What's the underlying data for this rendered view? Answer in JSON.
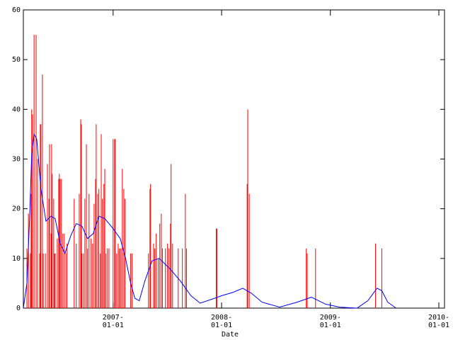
{
  "chart_data": {
    "type": "combo",
    "x_label": "Date",
    "xlim": [
      "2006-03-05",
      "2010-01-20"
    ],
    "xticks": [
      {
        "value": "2007-01-01",
        "label": [
          "2007-",
          "01-01"
        ]
      },
      {
        "value": "2008-01-01",
        "label": [
          "2008-",
          "01-01"
        ]
      },
      {
        "value": "2009-01-01",
        "label": [
          "2009-",
          "01-01"
        ]
      },
      {
        "value": "2010-01-01",
        "label": [
          "2010-",
          "01-01"
        ]
      }
    ],
    "ylim": [
      0,
      60
    ],
    "yticks": [
      0,
      10,
      20,
      30,
      40,
      50,
      60
    ],
    "series": [
      {
        "type": "impulse",
        "color": "#ff0000",
        "x": [
          "2006-03-17",
          "2006-03-22",
          "2006-03-29",
          "2006-03-31",
          "2006-04-02",
          "2006-04-05",
          "2006-04-10",
          "2006-04-17",
          "2006-04-22",
          "2006-04-29",
          "2006-05-01",
          "2006-05-03",
          "2006-05-08",
          "2006-05-11",
          "2006-05-18",
          "2006-05-25",
          "2006-05-30",
          "2006-06-01",
          "2006-06-06",
          "2006-06-08",
          "2006-06-10",
          "2006-06-15",
          "2006-06-18",
          "2006-06-20",
          "2006-06-27",
          "2006-07-02",
          "2006-07-04",
          "2006-07-07",
          "2006-07-11",
          "2006-07-16",
          "2006-07-21",
          "2006-07-26",
          "2006-07-30",
          "2006-08-23",
          "2006-08-30",
          "2006-09-09",
          "2006-09-14",
          "2006-09-16",
          "2006-09-18",
          "2006-09-23",
          "2006-09-28",
          "2006-10-03",
          "2006-10-07",
          "2006-10-12",
          "2006-10-19",
          "2006-10-24",
          "2006-10-29",
          "2006-11-03",
          "2006-11-05",
          "2006-11-10",
          "2006-11-14",
          "2006-11-19",
          "2006-11-22",
          "2006-11-26",
          "2006-12-01",
          "2006-12-04",
          "2006-12-08",
          "2006-12-13",
          "2006-12-18",
          "2007-01-01",
          "2007-01-06",
          "2007-01-08",
          "2007-01-13",
          "2007-01-18",
          "2007-01-22",
          "2007-01-27",
          "2007-02-01",
          "2007-02-06",
          "2007-02-10",
          "2007-03-01",
          "2007-03-06",
          "2007-04-30",
          "2007-05-05",
          "2007-05-07",
          "2007-05-17",
          "2007-05-21",
          "2007-05-26",
          "2007-06-02",
          "2007-06-07",
          "2007-06-12",
          "2007-06-16",
          "2007-06-26",
          "2007-07-03",
          "2007-07-08",
          "2007-07-13",
          "2007-07-15",
          "2007-07-20",
          "2007-08-08",
          "2007-08-22",
          "2007-09-01",
          "2007-09-05",
          "2007-12-14",
          "2007-12-16",
          "2008-03-27",
          "2008-03-29",
          "2008-04-03",
          "2008-10-12",
          "2008-10-15",
          "2008-11-12",
          "2009-06-02",
          "2009-06-23"
        ],
        "values": [
          12,
          19,
          11,
          23,
          40,
          39,
          55,
          55,
          30,
          11,
          37,
          37,
          47,
          11,
          11,
          29,
          22,
          33,
          15,
          33,
          27,
          22,
          11,
          11,
          14,
          26,
          27,
          26,
          26,
          15,
          15,
          11,
          13,
          22,
          13,
          23,
          38,
          37,
          11,
          11,
          22,
          33,
          12,
          23,
          14,
          13,
          21,
          26,
          37,
          23,
          24,
          11,
          35,
          22,
          25,
          28,
          11,
          12,
          12,
          34,
          34,
          34,
          11,
          13,
          12,
          12,
          28,
          24,
          22,
          11,
          11,
          11,
          24,
          25,
          13,
          12,
          15,
          10,
          17,
          19,
          12,
          12,
          13,
          12,
          17,
          29,
          13,
          12,
          12,
          23,
          12,
          16,
          16,
          25,
          40,
          23,
          12,
          11,
          12,
          13,
          12
        ]
      },
      {
        "type": "line",
        "color": "#0000ff",
        "x": [
          "2006-03-05",
          "2006-03-17",
          "2006-03-26",
          "2006-04-02",
          "2006-04-10",
          "2006-04-19",
          "2006-05-03",
          "2006-05-20",
          "2006-06-06",
          "2006-06-20",
          "2006-07-07",
          "2006-07-23",
          "2006-08-11",
          "2006-08-30",
          "2006-09-18",
          "2006-10-07",
          "2006-10-26",
          "2006-11-14",
          "2006-12-04",
          "2007-01-01",
          "2007-01-25",
          "2007-02-12",
          "2007-03-01",
          "2007-03-15",
          "2007-03-30",
          "2007-04-18",
          "2007-05-12",
          "2007-06-05",
          "2007-07-10",
          "2007-08-15",
          "2007-09-20",
          "2007-10-21",
          "2007-11-30",
          "2008-01-01",
          "2008-02-10",
          "2008-03-12",
          "2008-04-10",
          "2008-05-16",
          "2008-07-14",
          "2008-09-11",
          "2008-10-29",
          "2008-12-16",
          "2009-02-01",
          "2009-04-01",
          "2009-05-07",
          "2009-06-07",
          "2009-06-23",
          "2009-07-13",
          "2009-08-10"
        ],
        "values": [
          0,
          5,
          18,
          31,
          35,
          34,
          24,
          17.5,
          18.5,
          18,
          13,
          11,
          14.5,
          17,
          16.5,
          14,
          15,
          18.5,
          18,
          16,
          14,
          10,
          5,
          2,
          1.5,
          5.5,
          9.5,
          10,
          8,
          5.5,
          2.5,
          1,
          1.8,
          2.5,
          3.2,
          4,
          3,
          1.2,
          0.2,
          1.2,
          2.2,
          0.8,
          0.2,
          0,
          1.5,
          4,
          3.5,
          1.2,
          0
        ]
      }
    ]
  }
}
